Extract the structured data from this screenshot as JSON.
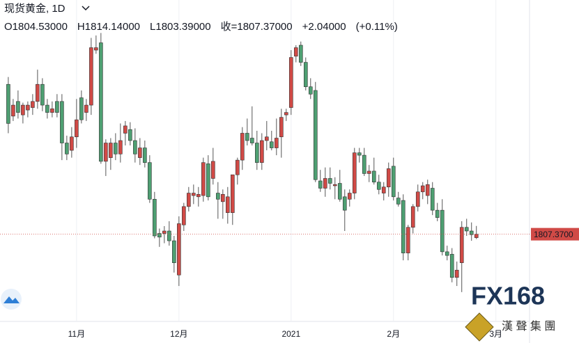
{
  "chart_data": {
    "type": "candlestick",
    "title": "现货黄金, 1D",
    "header": [
      "O1804.53000",
      "H1814.14000",
      "L1803.39000",
      "收=1807.37000",
      "+2.04000",
      "(+0.11%)"
    ],
    "up_color": "#d04a46",
    "down_color": "#4e9f72",
    "grid": "x",
    "xlim": [
      -1.7,
      106.9
    ],
    "ylim": [
      1736,
      1999
    ],
    "xticks": [
      {
        "value": 14,
        "label": "11月"
      },
      {
        "value": 35,
        "label": "12月"
      },
      {
        "value": 58,
        "label": "2021"
      },
      {
        "value": 79,
        "label": "2月"
      },
      {
        "value": 100,
        "label": "3月"
      }
    ],
    "open": [
      1930,
      1904,
      1916,
      1905,
      1909,
      1911,
      1916,
      1930,
      1913,
      1907,
      1916,
      1916,
      1882,
      1876,
      1887,
      1919,
      1907,
      1913,
      1958,
      1964,
      1867,
      1870,
      1882,
      1873,
      1890,
      1893,
      1884,
      1870,
      1878,
      1866,
      1836,
      1808,
      1808,
      1810,
      1802,
      1774,
      1815,
      1830,
      1839,
      1838,
      1839,
      1865,
      1853,
      1841,
      1834,
      1825,
      1825,
      1856,
      1868,
      1890,
      1886,
      1882,
      1866,
      1884,
      1883,
      1878,
      1887,
      1905,
      1911,
      1953,
      1962,
      1948,
      1928,
      1925,
      1851,
      1845,
      1853,
      1847,
      1849,
      1838,
      1836,
      1841,
      1874,
      1872,
      1857,
      1859,
      1850,
      1841,
      1846,
      1863,
      1837,
      1835,
      1792,
      1813,
      1830,
      1842,
      1839,
      1845,
      1827,
      1827,
      1793,
      1791,
      1772,
      1784,
      1813,
      1810,
      1804.53
    ],
    "high": [
      1936,
      1918,
      1925,
      1915,
      1916,
      1922,
      1942,
      1935,
      1918,
      1916,
      1922,
      1922,
      1888,
      1895,
      1918,
      1925,
      1918,
      1968,
      1970,
      1972,
      1885,
      1886,
      1890,
      1898,
      1900,
      1899,
      1894,
      1886,
      1884,
      1872,
      1842,
      1812,
      1814,
      1818,
      1806,
      1822,
      1833,
      1846,
      1848,
      1846,
      1870,
      1872,
      1878,
      1850,
      1844,
      1846,
      1856,
      1870,
      1895,
      1902,
      1912,
      1892,
      1890,
      1900,
      1892,
      1902,
      1910,
      1910,
      1958,
      1962,
      1965,
      1952,
      1935,
      1932,
      1860,
      1862,
      1862,
      1854,
      1860,
      1844,
      1844,
      1878,
      1878,
      1878,
      1864,
      1870,
      1856,
      1850,
      1866,
      1870,
      1842,
      1840,
      1815,
      1832,
      1848,
      1850,
      1852,
      1850,
      1833,
      1836,
      1798,
      1796,
      1785,
      1818,
      1820,
      1817,
      1814.14
    ],
    "low": [
      1890,
      1900,
      1902,
      1898,
      1903,
      1905,
      1910,
      1908,
      1902,
      1903,
      1903,
      1868,
      1868,
      1870,
      1878,
      1898,
      1900,
      1905,
      1955,
      1865,
      1855,
      1860,
      1868,
      1866,
      1880,
      1880,
      1866,
      1864,
      1862,
      1833,
      1804,
      1797,
      1800,
      1798,
      1776,
      1765,
      1810,
      1826,
      1832,
      1830,
      1834,
      1835,
      1848,
      1820,
      1820,
      1816,
      1815,
      1848,
      1860,
      1880,
      1880,
      1860,
      1860,
      1876,
      1876,
      1872,
      1870,
      1900,
      1905,
      1948,
      1945,
      1925,
      1918,
      1850,
      1842,
      1838,
      1844,
      1836,
      1834,
      1810,
      1830,
      1836,
      1866,
      1855,
      1850,
      1848,
      1840,
      1835,
      1838,
      1835,
      1830,
      1786,
      1786,
      1808,
      1826,
      1836,
      1832,
      1823,
      1818,
      1790,
      1786,
      1768,
      1765,
      1760,
      1806,
      1802,
      1803.39
    ],
    "close": [
      1898,
      1913,
      1907,
      1913,
      1913,
      1916,
      1930,
      1913,
      1907,
      1910,
      1907,
      1882,
      1873,
      1887,
      1901,
      1901,
      1913,
      1960,
      1960,
      1867,
      1882,
      1882,
      1873,
      1884,
      1896,
      1884,
      1873,
      1878,
      1866,
      1836,
      1806,
      1805,
      1810,
      1802,
      1784,
      1816,
      1830,
      1841,
      1841,
      1840,
      1866,
      1838,
      1867,
      1836,
      1840,
      1838,
      1856,
      1868,
      1890,
      1884,
      1882,
      1866,
      1884,
      1887,
      1878,
      1886,
      1903,
      1907,
      1952,
      1960,
      1948,
      1928,
      1922,
      1852,
      1845,
      1853,
      1849,
      1848,
      1836,
      1827,
      1841,
      1874,
      1872,
      1857,
      1859,
      1850,
      1844,
      1846,
      1861,
      1838,
      1832,
      1792,
      1813,
      1830,
      1842,
      1847,
      1848,
      1827,
      1821,
      1793,
      1790,
      1772,
      1778,
      1813,
      1810,
      1807,
      1807.37
    ],
    "last_price": {
      "value": 1807.37,
      "label": "1807.3700"
    },
    "watermark": {
      "logo": "FX168",
      "name": "漢 聲 集 團"
    }
  }
}
